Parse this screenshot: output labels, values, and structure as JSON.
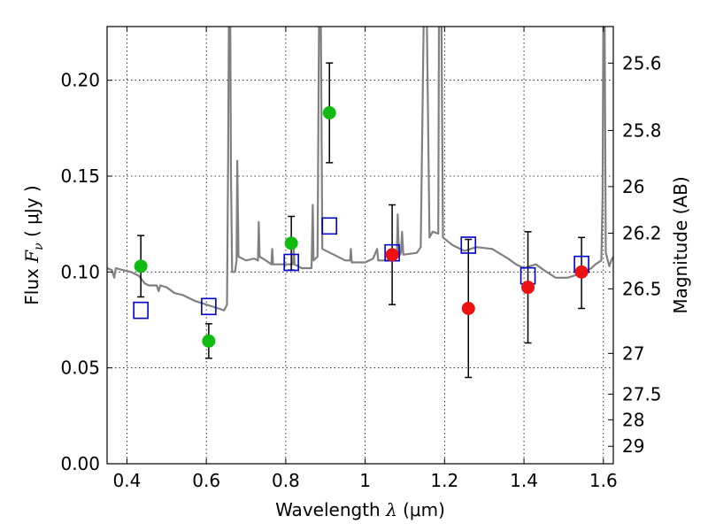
{
  "chart_data": {
    "type": "scatter",
    "xlabel_prefix": "Wavelength ",
    "xlabel_var": "λ",
    "xlabel_unit": " (μm)",
    "ylabel_prefix": "Flux ",
    "ylabel_var": "F",
    "ylabel_sub": "ν",
    "ylabel_unit": " ( μJy )",
    "y2label": "Magnitude (AB)",
    "xlim": [
      0.35,
      1.625
    ],
    "ylim": [
      0.0,
      0.228
    ],
    "grid": true,
    "x_ticks": [
      0.4,
      0.6,
      0.8,
      1.0,
      1.2,
      1.4,
      1.6
    ],
    "x_tick_labels": [
      "0.4",
      "0.6",
      "0.8",
      "1",
      "1.2",
      "1.4",
      "1.6"
    ],
    "y_ticks": [
      0.0,
      0.05,
      0.1,
      0.15,
      0.2
    ],
    "y_tick_labels": [
      "0.00",
      "0.05",
      "0.10",
      "0.15",
      "0.20"
    ],
    "mag_ticks": [
      25.6,
      25.8,
      26,
      26.2,
      26.5,
      27,
      27.5,
      28,
      29
    ],
    "mag_tick_labels": [
      "25.6",
      "25.8",
      "26",
      "26.2",
      "26.5",
      "27",
      "27.5",
      "28",
      "29"
    ],
    "colors": {
      "green": "#11bb11",
      "red": "#ee1111",
      "blue": "#0000cc",
      "model": "#808080",
      "grid": "#000000"
    },
    "series": [
      {
        "name": "",
        "marker": "circle",
        "color": "green",
        "points": [
          {
            "x": 0.435,
            "y": 0.103,
            "yerr_lo": 0.087,
            "yerr_hi": 0.119
          },
          {
            "x": 0.606,
            "y": 0.064,
            "yerr_lo": 0.055,
            "yerr_hi": 0.073
          },
          {
            "x": 0.814,
            "y": 0.115,
            "yerr_lo": 0.101,
            "yerr_hi": 0.129
          },
          {
            "x": 0.91,
            "y": 0.183,
            "yerr_lo": 0.157,
            "yerr_hi": 0.209
          }
        ]
      },
      {
        "name": "",
        "marker": "circle",
        "color": "red",
        "points": [
          {
            "x": 1.068,
            "y": 0.109,
            "yerr_lo": 0.083,
            "yerr_hi": 0.135
          },
          {
            "x": 1.26,
            "y": 0.081,
            "yerr_lo": 0.045,
            "yerr_hi": 0.117
          },
          {
            "x": 1.41,
            "y": 0.092,
            "yerr_lo": 0.063,
            "yerr_hi": 0.121
          },
          {
            "x": 1.545,
            "y": 0.1,
            "yerr_lo": 0.081,
            "yerr_hi": 0.118
          }
        ]
      },
      {
        "name": "",
        "marker": "open-square",
        "color": "blue",
        "points": [
          {
            "x": 0.435,
            "y": 0.08
          },
          {
            "x": 0.606,
            "y": 0.082
          },
          {
            "x": 0.814,
            "y": 0.105
          },
          {
            "x": 0.91,
            "y": 0.124
          },
          {
            "x": 1.068,
            "y": 0.11
          },
          {
            "x": 1.26,
            "y": 0.114
          },
          {
            "x": 1.41,
            "y": 0.098
          },
          {
            "x": 1.545,
            "y": 0.104
          }
        ]
      },
      {
        "name": "",
        "marker": "line",
        "color": "model",
        "points": [
          [
            0.35,
            0.102
          ],
          [
            0.362,
            0.101
          ],
          [
            0.368,
            0.097
          ],
          [
            0.372,
            0.102
          ],
          [
            0.39,
            0.101
          ],
          [
            0.41,
            0.1
          ],
          [
            0.43,
            0.098
          ],
          [
            0.445,
            0.094
          ],
          [
            0.455,
            0.093
          ],
          [
            0.475,
            0.093
          ],
          [
            0.48,
            0.09
          ],
          [
            0.484,
            0.093
          ],
          [
            0.5,
            0.092
          ],
          [
            0.52,
            0.089
          ],
          [
            0.54,
            0.088
          ],
          [
            0.57,
            0.085
          ],
          [
            0.6,
            0.083
          ],
          [
            0.63,
            0.081
          ],
          [
            0.645,
            0.08
          ],
          [
            0.652,
            0.083
          ],
          [
            0.655,
            0.16
          ],
          [
            0.657,
            0.24
          ],
          [
            0.66,
            0.24
          ],
          [
            0.662,
            0.15
          ],
          [
            0.665,
            0.1
          ],
          [
            0.672,
            0.1
          ],
          [
            0.676,
            0.106
          ],
          [
            0.678,
            0.158
          ],
          [
            0.681,
            0.108
          ],
          [
            0.7,
            0.106
          ],
          [
            0.72,
            0.107
          ],
          [
            0.73,
            0.106
          ],
          [
            0.732,
            0.126
          ],
          [
            0.734,
            0.108
          ],
          [
            0.75,
            0.106
          ],
          [
            0.764,
            0.104
          ],
          [
            0.766,
            0.112
          ],
          [
            0.768,
            0.104
          ],
          [
            0.8,
            0.104
          ],
          [
            0.818,
            0.104
          ],
          [
            0.82,
            0.112
          ],
          [
            0.822,
            0.104
          ],
          [
            0.84,
            0.102
          ],
          [
            0.865,
            0.102
          ],
          [
            0.868,
            0.135
          ],
          [
            0.87,
            0.106
          ],
          [
            0.88,
            0.108
          ],
          [
            0.884,
            0.24
          ],
          [
            0.888,
            0.24
          ],
          [
            0.892,
            0.112
          ],
          [
            0.95,
            0.106
          ],
          [
            0.962,
            0.106
          ],
          [
            0.964,
            0.112
          ],
          [
            0.966,
            0.105
          ],
          [
            1.0,
            0.105
          ],
          [
            1.02,
            0.107
          ],
          [
            1.03,
            0.112
          ],
          [
            1.033,
            0.106
          ],
          [
            1.06,
            0.106
          ],
          [
            1.08,
            0.11
          ],
          [
            1.082,
            0.13
          ],
          [
            1.085,
            0.108
          ],
          [
            1.09,
            0.11
          ],
          [
            1.093,
            0.121
          ],
          [
            1.096,
            0.109
          ],
          [
            1.13,
            0.11
          ],
          [
            1.14,
            0.113
          ],
          [
            1.148,
            0.24
          ],
          [
            1.155,
            0.24
          ],
          [
            1.162,
            0.118
          ],
          [
            1.17,
            0.121
          ],
          [
            1.184,
            0.12
          ],
          [
            1.186,
            0.24
          ],
          [
            1.192,
            0.24
          ],
          [
            1.196,
            0.118
          ],
          [
            1.22,
            0.114
          ],
          [
            1.25,
            0.111
          ],
          [
            1.28,
            0.113
          ],
          [
            1.32,
            0.112
          ],
          [
            1.36,
            0.107
          ],
          [
            1.38,
            0.104
          ],
          [
            1.4,
            0.102
          ],
          [
            1.43,
            0.104
          ],
          [
            1.45,
            0.101
          ],
          [
            1.48,
            0.097
          ],
          [
            1.51,
            0.097
          ],
          [
            1.54,
            0.099
          ],
          [
            1.57,
            0.102
          ],
          [
            1.58,
            0.104
          ],
          [
            1.595,
            0.106
          ],
          [
            1.598,
            0.14
          ],
          [
            1.6,
            0.24
          ],
          [
            1.603,
            0.24
          ],
          [
            1.606,
            0.11
          ],
          [
            1.615,
            0.103
          ],
          [
            1.62,
            0.106
          ],
          [
            1.625,
            0.108
          ]
        ]
      }
    ]
  }
}
